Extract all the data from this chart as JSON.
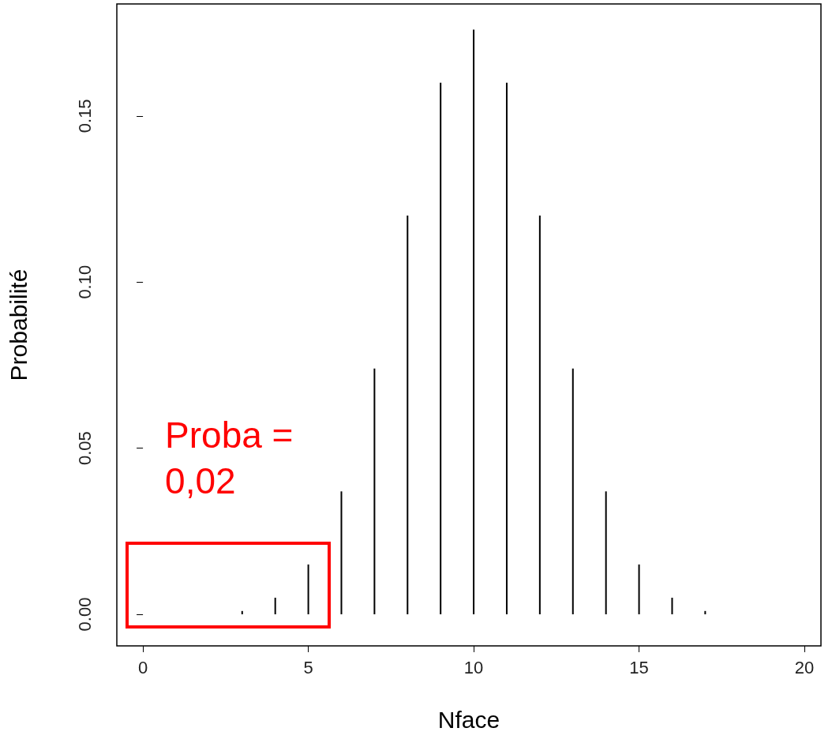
{
  "chart_data": {
    "type": "bar",
    "xlabel": "Nface",
    "ylabel": "Probabilité",
    "x": [
      0,
      1,
      2,
      3,
      4,
      5,
      6,
      7,
      8,
      9,
      10,
      11,
      12,
      13,
      14,
      15,
      16,
      17,
      18,
      19,
      20
    ],
    "values": [
      0,
      0,
      0,
      0.001,
      0.005,
      0.015,
      0.037,
      0.074,
      0.12,
      0.16,
      0.176,
      0.16,
      0.12,
      0.074,
      0.037,
      0.015,
      0.005,
      0.001,
      0,
      0,
      0
    ],
    "color": "#000000",
    "xlim": [
      -0.79,
      20.5
    ],
    "xticks": [
      0,
      5,
      10,
      15,
      20
    ],
    "ylim": [
      -0.0095,
      0.1837
    ],
    "yticks": [
      {
        "value": 0,
        "label": "0.00"
      },
      0.05,
      {
        "value": 0.1,
        "label": "0.10"
      },
      0.15
    ],
    "annotations": [
      "Proba = 0,02"
    ]
  }
}
